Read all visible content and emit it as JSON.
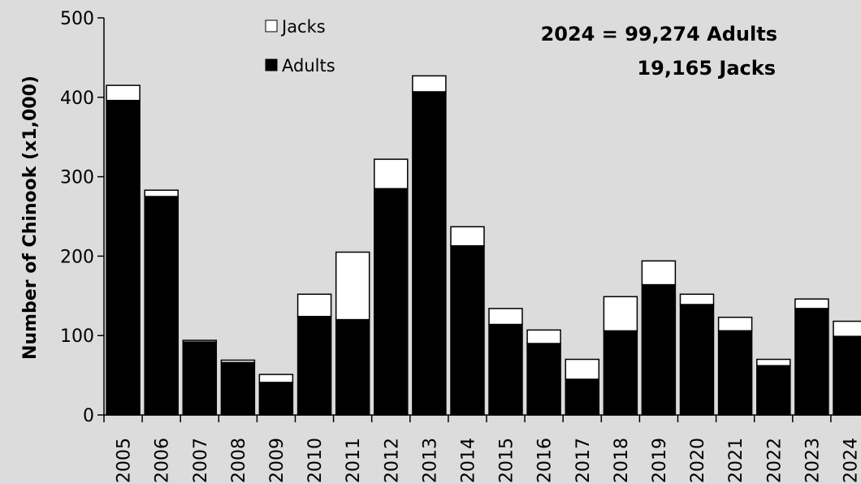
{
  "chart_data": {
    "type": "bar",
    "stacked": true,
    "categories": [
      "2005",
      "2006",
      "2007",
      "2008",
      "2009",
      "2010",
      "2011",
      "2012",
      "2013",
      "2014",
      "2015",
      "2016",
      "2017",
      "2018",
      "2019",
      "2020",
      "2021",
      "2022",
      "2023",
      "2024"
    ],
    "series": [
      {
        "name": "Adults",
        "color": "#000000",
        "values": [
          396,
          275,
          92,
          66,
          41,
          124,
          120,
          285,
          407,
          213,
          114,
          90,
          45,
          106,
          164,
          139,
          106,
          62,
          134,
          99
        ]
      },
      {
        "name": "Jacks",
        "color": "#ffffff",
        "values": [
          19,
          8,
          2,
          3,
          10,
          28,
          85,
          37,
          20,
          24,
          20,
          17,
          25,
          43,
          30,
          13,
          17,
          8,
          12,
          19
        ]
      }
    ],
    "ylabel": "Number of Chinook (x1,000)",
    "xlabel": "",
    "ylim": [
      0,
      500
    ],
    "yticks": [
      0,
      100,
      200,
      300,
      400,
      500
    ],
    "grid": false,
    "legend": {
      "placement": "top-center",
      "entries": [
        "Jacks",
        "Adults"
      ]
    },
    "annotations": [
      "2024 = 99,274 Adults",
      "19,165 Jacks"
    ]
  }
}
